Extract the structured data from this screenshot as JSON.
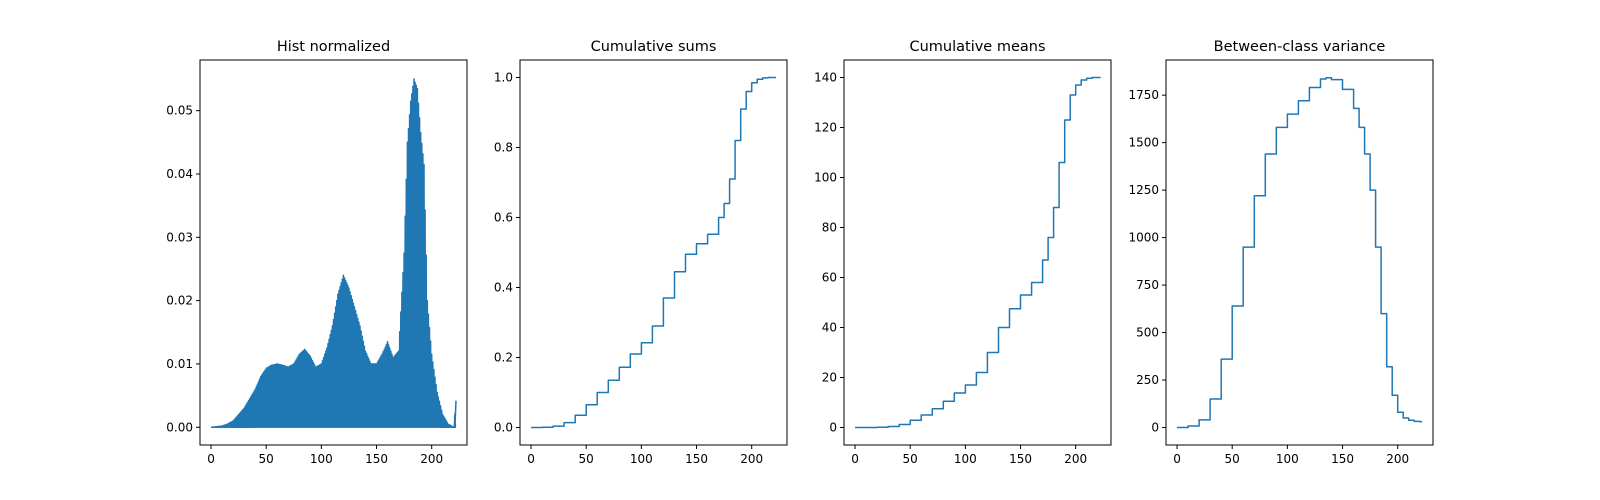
{
  "chart_data": [
    {
      "type": "line",
      "title": "Hist normalized",
      "xlabel": "",
      "ylabel": "",
      "xlim": [
        -10,
        232
      ],
      "ylim": [
        -0.0028,
        0.058
      ],
      "xticks": [
        0,
        50,
        100,
        150,
        200
      ],
      "xtick_labels": [
        "0",
        "50",
        "100",
        "150",
        "200"
      ],
      "yticks": [
        0.0,
        0.01,
        0.02,
        0.03,
        0.04,
        0.05
      ],
      "ytick_labels": [
        "0.00",
        "0.01",
        "0.02",
        "0.03",
        "0.04",
        "0.05"
      ],
      "grid": false,
      "color": "#1f77b4",
      "histogram_peaks": {
        "note_x": [
          0,
          10,
          15,
          20,
          25,
          30,
          35,
          40,
          45,
          50,
          55,
          60,
          65,
          70,
          75,
          80,
          85,
          90,
          95,
          100,
          105,
          110,
          115,
          120,
          125,
          130,
          135,
          140,
          145,
          150,
          155,
          160,
          165,
          170,
          175,
          178,
          181,
          184,
          187,
          190,
          193,
          196,
          200,
          205,
          210,
          215,
          220,
          222
        ],
        "values": [
          0.0,
          0.0002,
          0.0005,
          0.001,
          0.002,
          0.003,
          0.0045,
          0.006,
          0.008,
          0.0093,
          0.0098,
          0.01,
          0.0098,
          0.0095,
          0.01,
          0.0115,
          0.0123,
          0.0112,
          0.0095,
          0.01,
          0.0125,
          0.016,
          0.021,
          0.024,
          0.022,
          0.019,
          0.016,
          0.012,
          0.01,
          0.01,
          0.0115,
          0.0135,
          0.011,
          0.012,
          0.0275,
          0.045,
          0.0515,
          0.055,
          0.0535,
          0.0465,
          0.0415,
          0.02,
          0.0115,
          0.0055,
          0.002,
          0.0005,
          0.0,
          0.0042
        ]
      }
    },
    {
      "type": "line",
      "title": "Cumulative sums",
      "xlabel": "",
      "ylabel": "",
      "xlim": [
        -10,
        232
      ],
      "ylim": [
        -0.05,
        1.05
      ],
      "xticks": [
        0,
        50,
        100,
        150,
        200
      ],
      "xtick_labels": [
        "0",
        "50",
        "100",
        "150",
        "200"
      ],
      "yticks": [
        0.0,
        0.2,
        0.4,
        0.6,
        0.8,
        1.0
      ],
      "ytick_labels": [
        "0.0",
        "0.2",
        "0.4",
        "0.6",
        "0.8",
        "1.0"
      ],
      "grid": false,
      "color": "#1f77b4",
      "x": [
        0,
        10,
        20,
        30,
        40,
        50,
        60,
        70,
        80,
        90,
        100,
        110,
        120,
        130,
        140,
        150,
        160,
        170,
        175,
        180,
        185,
        190,
        195,
        200,
        205,
        210,
        215,
        220,
        222
      ],
      "y": [
        0.0,
        0.0005,
        0.004,
        0.014,
        0.035,
        0.065,
        0.1,
        0.135,
        0.172,
        0.21,
        0.242,
        0.29,
        0.37,
        0.445,
        0.495,
        0.525,
        0.552,
        0.6,
        0.64,
        0.71,
        0.82,
        0.91,
        0.96,
        0.985,
        0.995,
        0.999,
        1.0,
        1.0,
        1.0
      ]
    },
    {
      "type": "line",
      "title": "Cumulative means",
      "xlabel": "",
      "ylabel": "",
      "xlim": [
        -10,
        232
      ],
      "ylim": [
        -7,
        147
      ],
      "xticks": [
        0,
        50,
        100,
        150,
        200
      ],
      "xtick_labels": [
        "0",
        "50",
        "100",
        "150",
        "200"
      ],
      "yticks": [
        0,
        20,
        40,
        60,
        80,
        100,
        120,
        140
      ],
      "ytick_labels": [
        "0",
        "20",
        "40",
        "60",
        "80",
        "100",
        "120",
        "140"
      ],
      "grid": false,
      "color": "#1f77b4",
      "x": [
        0,
        20,
        30,
        40,
        50,
        60,
        70,
        80,
        90,
        100,
        110,
        120,
        130,
        140,
        150,
        160,
        170,
        175,
        180,
        185,
        190,
        195,
        200,
        205,
        210,
        215,
        220,
        222
      ],
      "y": [
        0,
        0.1,
        0.4,
        1.2,
        2.9,
        5.0,
        7.5,
        10.5,
        13.8,
        17.0,
        22.0,
        30.0,
        40.0,
        47.5,
        53.0,
        58.0,
        67.0,
        76.0,
        88.0,
        106.0,
        123.0,
        133.0,
        137.0,
        139.0,
        139.7,
        140.0,
        140.0,
        140.3
      ]
    },
    {
      "type": "line",
      "title": "Between-class variance",
      "xlabel": "",
      "ylabel": "",
      "xlim": [
        -10,
        232
      ],
      "ylim": [
        -92,
        1935
      ],
      "xticks": [
        0,
        50,
        100,
        150,
        200
      ],
      "xtick_labels": [
        "0",
        "50",
        "100",
        "150",
        "200"
      ],
      "yticks": [
        0,
        250,
        500,
        750,
        1000,
        1250,
        1500,
        1750
      ],
      "ytick_labels": [
        "0",
        "250",
        "500",
        "750",
        "1000",
        "1250",
        "1500",
        "1750"
      ],
      "grid": false,
      "color": "#1f77b4",
      "x": [
        0,
        10,
        20,
        30,
        40,
        50,
        60,
        70,
        80,
        90,
        100,
        110,
        120,
        130,
        135,
        140,
        150,
        160,
        165,
        170,
        175,
        180,
        185,
        190,
        195,
        200,
        205,
        210,
        215,
        220,
        222
      ],
      "y": [
        0,
        8,
        40,
        150,
        360,
        640,
        950,
        1220,
        1440,
        1580,
        1650,
        1720,
        1790,
        1835,
        1842,
        1832,
        1780,
        1680,
        1580,
        1440,
        1250,
        950,
        600,
        320,
        170,
        80,
        50,
        38,
        32,
        30,
        30
      ]
    }
  ]
}
